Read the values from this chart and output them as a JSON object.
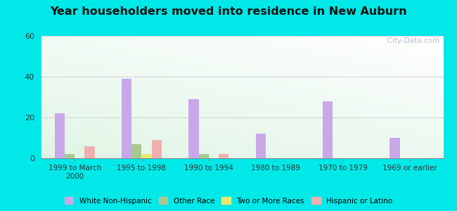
{
  "title": "Year householders moved into residence in New Auburn",
  "categories": [
    "1999 to March\n2000",
    "1995 to 1998",
    "1990 to 1994",
    "1980 to 1989",
    "1970 to 1979",
    "1969 or earlier"
  ],
  "series": {
    "White Non-Hispanic": [
      22,
      39,
      29,
      12,
      28,
      10
    ],
    "Other Race": [
      2,
      7,
      2,
      0,
      0,
      0
    ],
    "Two or More Races": [
      0,
      2,
      0,
      0,
      0,
      0
    ],
    "Hispanic or Latino": [
      6,
      9,
      2,
      0,
      0,
      0
    ]
  },
  "colors": {
    "White Non-Hispanic": "#c8a8e8",
    "Other Race": "#a8c890",
    "Two or More Races": "#e8e870",
    "Hispanic or Latino": "#f0b0b0"
  },
  "ylim": [
    0,
    60
  ],
  "yticks": [
    0,
    20,
    40,
    60
  ],
  "bar_width": 0.15,
  "outer_bg": "#00e8e8",
  "watermark": "  City-Data.com"
}
